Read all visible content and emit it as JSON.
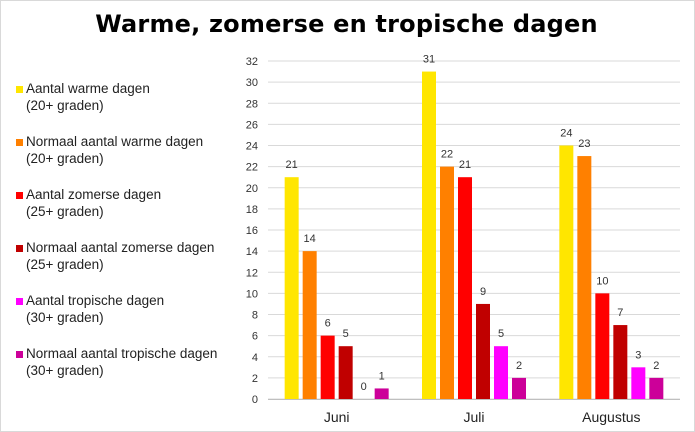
{
  "chart_data": {
    "type": "bar",
    "title": "Warme, zomerse en tropische dagen",
    "categories": [
      "Juni",
      "Juli",
      "Augustus"
    ],
    "ylim": [
      0,
      32
    ],
    "yticks": [
      "0",
      "2",
      "4",
      "6",
      "8",
      "10",
      "12",
      "14",
      "16",
      "18",
      "20",
      "22",
      "24",
      "26",
      "28",
      "30",
      "32"
    ],
    "grid": true,
    "legend_position": "left",
    "series": [
      {
        "name": "Aantal warme dagen",
        "name_line2": "(20+ graden)",
        "color": "#FFE600",
        "values": [
          21,
          31,
          24
        ]
      },
      {
        "name": "Normaal aantal warme dagen",
        "name_line2": "(20+ graden)",
        "color": "#FF8000",
        "values": [
          14,
          22,
          23
        ]
      },
      {
        "name": "Aantal zomerse dagen",
        "name_line2": "(25+ graden)",
        "color": "#FF0000",
        "values": [
          6,
          21,
          10
        ]
      },
      {
        "name": "Normaal aantal zomerse dagen",
        "name_line2": "(25+ graden)",
        "color": "#C00000",
        "values": [
          5,
          9,
          7
        ]
      },
      {
        "name": "Aantal tropische dagen",
        "name_line2": "(30+ graden)",
        "color": "#FF00FF",
        "values": [
          0,
          5,
          3
        ]
      },
      {
        "name": "Normaal aantal tropische dagen",
        "name_line2": "(30+ graden)",
        "color": "#CC0099",
        "values": [
          1,
          2,
          2
        ]
      }
    ]
  }
}
